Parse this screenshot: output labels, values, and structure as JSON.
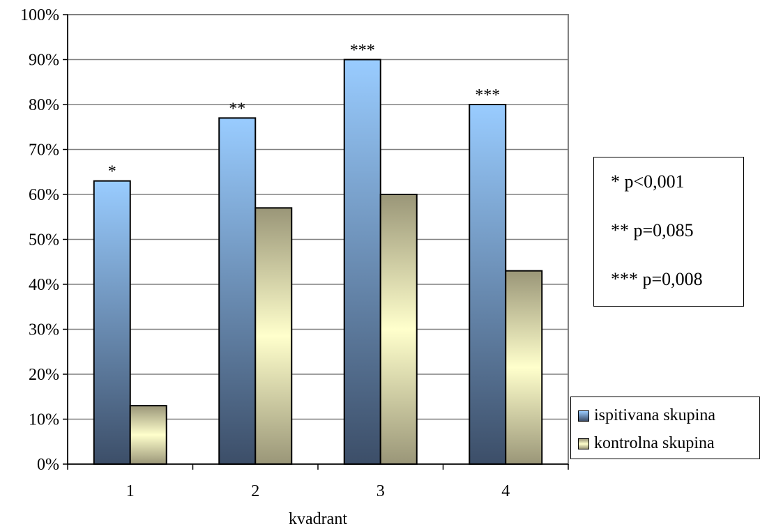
{
  "chart_data": {
    "type": "bar",
    "categories": [
      "1",
      "2",
      "3",
      "4"
    ],
    "series": [
      {
        "name": "ispitivana skupina",
        "values": [
          63,
          77,
          90,
          80
        ],
        "color_top": "#99ccff",
        "color_bottom": "#3c4e68"
      },
      {
        "name": "kontrolna skupina",
        "values": [
          13,
          57,
          60,
          43
        ],
        "color_top": "#9a9678",
        "color_bottom": "#ffffcc"
      }
    ],
    "yticks": [
      "0%",
      "10%",
      "20%",
      "30%",
      "40%",
      "50%",
      "60%",
      "70%",
      "80%",
      "90%",
      "100%"
    ],
    "ylim": [
      0,
      100
    ],
    "xlabel": "kvadrant",
    "ylabel": "",
    "title": "",
    "grid": true,
    "legend_position": "bottom-right",
    "significance_marks": [
      "*",
      "**",
      "***",
      "***"
    ]
  },
  "pvalue_box": {
    "lines": [
      "* p<0,001",
      "** p=0,085",
      "*** p=0,008"
    ]
  }
}
